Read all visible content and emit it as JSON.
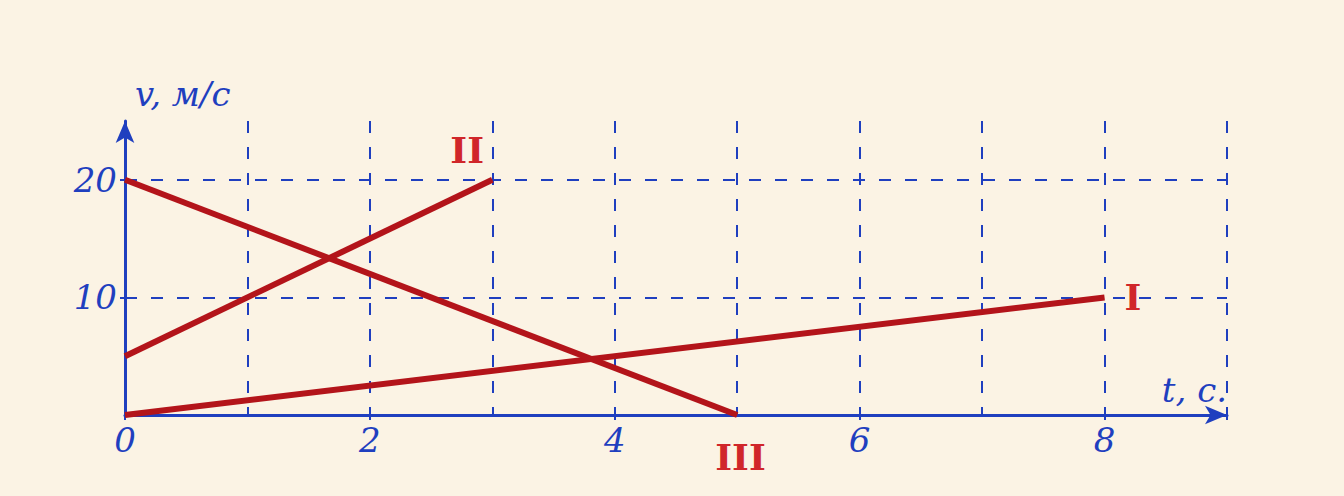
{
  "chart_data": {
    "type": "line",
    "x_label": "t, c.",
    "y_label": "v, м/с",
    "series": [
      {
        "name": "I",
        "color": "#b3141a",
        "x": [
          0,
          8
        ],
        "values": [
          0,
          10
        ]
      },
      {
        "name": "II",
        "color": "#b3141a",
        "x": [
          0,
          3
        ],
        "values": [
          5,
          20
        ]
      },
      {
        "name": "III",
        "color": "#b3141a",
        "x": [
          0,
          5
        ],
        "values": [
          20,
          0
        ]
      }
    ],
    "xlim": [
      0,
      9
    ],
    "xticks": [
      0,
      2,
      4,
      6,
      8
    ],
    "ylim": [
      0,
      25
    ],
    "yticks": [
      10,
      20
    ],
    "grid": true
  }
}
